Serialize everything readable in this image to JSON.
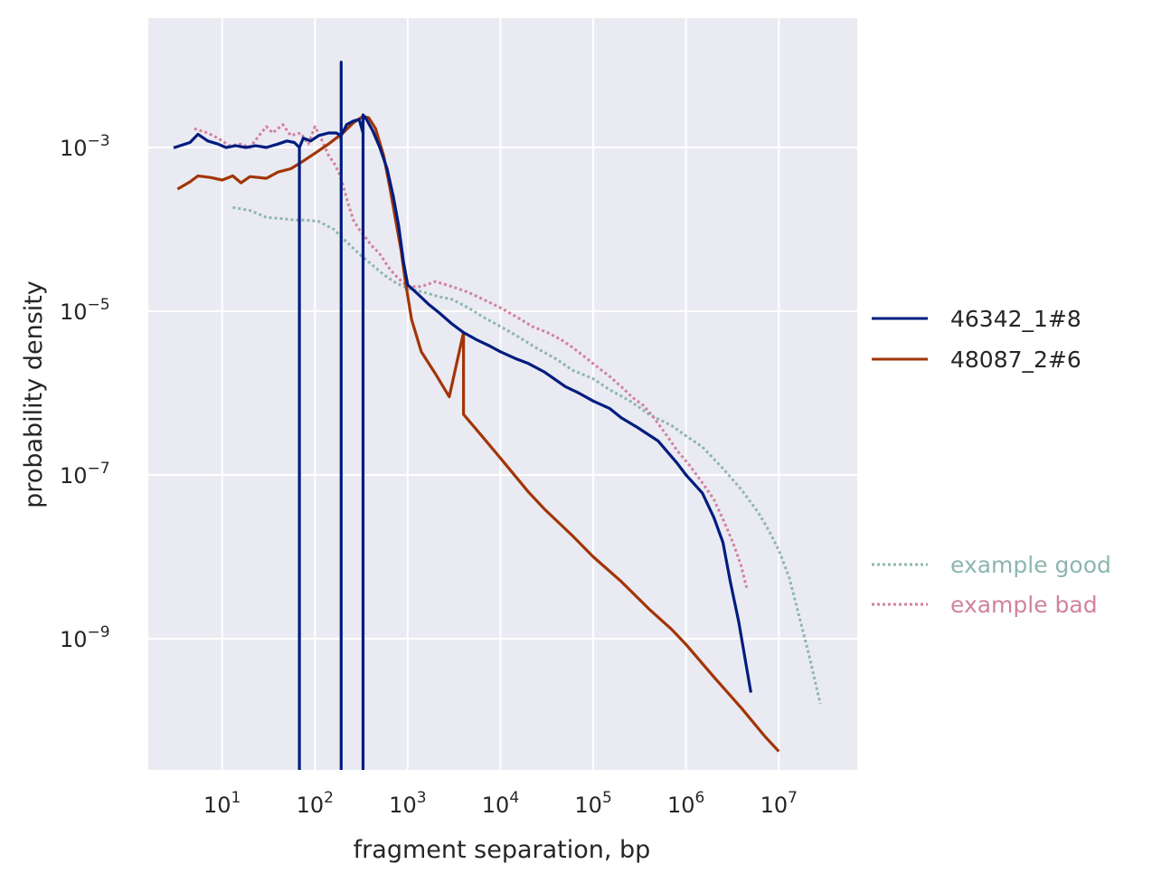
{
  "chart_data": {
    "type": "line",
    "xlabel": "fragment separation, bp",
    "ylabel": "probability density",
    "x_scale": "log",
    "y_scale": "log",
    "xlim": [
      1.6,
      70000000
    ],
    "ylim": [
      2.5e-11,
      0.038
    ],
    "grid": true,
    "x_ticks": [
      {
        "base": "10",
        "exp": "1",
        "value": 10
      },
      {
        "base": "10",
        "exp": "2",
        "value": 100
      },
      {
        "base": "10",
        "exp": "3",
        "value": 1000
      },
      {
        "base": "10",
        "exp": "4",
        "value": 10000
      },
      {
        "base": "10",
        "exp": "5",
        "value": 100000
      },
      {
        "base": "10",
        "exp": "6",
        "value": 1000000
      },
      {
        "base": "10",
        "exp": "7",
        "value": 10000000
      }
    ],
    "y_ticks": [
      {
        "base": "10",
        "exp": "−3",
        "value": 0.001
      },
      {
        "base": "10",
        "exp": "−5",
        "value": 1e-05
      },
      {
        "base": "10",
        "exp": "−7",
        "value": 1e-07
      },
      {
        "base": "10",
        "exp": "−9",
        "value": 1e-09
      }
    ],
    "legend_placement": "right",
    "series": [
      {
        "name": "46342_1#8",
        "color": "#001c7f",
        "style": "solid",
        "points": [
          [
            3.0,
            0.00099
          ],
          [
            4.5,
            0.00115
          ],
          [
            5.5,
            0.00145
          ],
          [
            7,
            0.0012
          ],
          [
            9,
            0.0011
          ],
          [
            11,
            0.001
          ],
          [
            14,
            0.00105
          ],
          [
            18,
            0.001
          ],
          [
            23,
            0.00105
          ],
          [
            30,
            0.001
          ],
          [
            40,
            0.0011
          ],
          [
            50,
            0.0012
          ],
          [
            60,
            0.00115
          ],
          [
            68,
            0.001
          ],
          [
            68,
            2.5e-11
          ],
          [
            68,
            0.001
          ],
          [
            75,
            0.0013
          ],
          [
            90,
            0.0012
          ],
          [
            110,
            0.0014
          ],
          [
            140,
            0.0015
          ],
          [
            170,
            0.0015
          ],
          [
            190,
            0.0014
          ],
          [
            192,
            0.0011
          ],
          [
            192,
            2.5e-11
          ],
          [
            192,
            0.011
          ],
          [
            192,
            0.0014
          ],
          [
            220,
            0.0019
          ],
          [
            260,
            0.0021
          ],
          [
            300,
            0.0022
          ],
          [
            330,
            0.0015
          ],
          [
            330,
            2.5e-11
          ],
          [
            330,
            0.0025
          ],
          [
            360,
            0.0022
          ],
          [
            420,
            0.0016
          ],
          [
            500,
            0.001
          ],
          [
            600,
            0.00055
          ],
          [
            700,
            0.00025
          ],
          [
            800,
            0.00011
          ],
          [
            900,
            4e-05
          ],
          [
            1000,
            2.1e-05
          ],
          [
            1300,
            1.6e-05
          ],
          [
            1700,
            1.2e-05
          ],
          [
            2200,
            9.5e-06
          ],
          [
            3000,
            7e-06
          ],
          [
            4000,
            5.5e-06
          ],
          [
            5500,
            4.5e-06
          ],
          [
            7500,
            3.8e-06
          ],
          [
            10000,
            3.2e-06
          ],
          [
            15000,
            2.6e-06
          ],
          [
            20000,
            2.3e-06
          ],
          [
            30000,
            1.8e-06
          ],
          [
            50000,
            1.2e-06
          ],
          [
            70000,
            1e-06
          ],
          [
            100000,
            8e-07
          ],
          [
            150000,
            6.5e-07
          ],
          [
            200000,
            5e-07
          ],
          [
            300000,
            3.8e-07
          ],
          [
            500000,
            2.6e-07
          ],
          [
            800000,
            1.4e-07
          ],
          [
            1000000,
            1e-07
          ],
          [
            1500000,
            6e-08
          ],
          [
            2000000,
            3e-08
          ],
          [
            2500000,
            1.5e-08
          ],
          [
            3000000,
            5e-09
          ],
          [
            3700000,
            1.6e-09
          ],
          [
            5000000,
            2.2e-10
          ]
        ]
      },
      {
        "name": "48087_2#6",
        "color": "#a23507",
        "style": "solid",
        "points": [
          [
            3.3,
            0.00031
          ],
          [
            4.5,
            0.00038
          ],
          [
            5.5,
            0.00045
          ],
          [
            7.5,
            0.00043
          ],
          [
            10,
            0.0004
          ],
          [
            13,
            0.00045
          ],
          [
            16,
            0.00037
          ],
          [
            20,
            0.00044
          ],
          [
            30,
            0.00042
          ],
          [
            40,
            0.0005
          ],
          [
            55,
            0.00055
          ],
          [
            70,
            0.00065
          ],
          [
            100,
            0.00085
          ],
          [
            140,
            0.0011
          ],
          [
            200,
            0.0015
          ],
          [
            260,
            0.002
          ],
          [
            330,
            0.0024
          ],
          [
            380,
            0.0023
          ],
          [
            450,
            0.0017
          ],
          [
            550,
            0.0008
          ],
          [
            650,
            0.0003
          ],
          [
            750,
            0.00012
          ],
          [
            850,
            5.5e-05
          ],
          [
            950,
            2.2e-05
          ],
          [
            1100,
            8e-06
          ],
          [
            1400,
            3.2e-06
          ],
          [
            2000,
            1.7e-06
          ],
          [
            2800,
            9e-07
          ],
          [
            4000,
            5.5e-06
          ],
          [
            4000,
            5.5e-07
          ],
          [
            6000,
            3.2e-07
          ],
          [
            10000,
            1.6e-07
          ],
          [
            20000,
            6.2e-08
          ],
          [
            30000,
            3.8e-08
          ],
          [
            60000,
            1.8e-08
          ],
          [
            100000,
            1e-08
          ],
          [
            200000,
            5e-09
          ],
          [
            400000,
            2.3e-09
          ],
          [
            700000,
            1.3e-09
          ],
          [
            1000000,
            8.5e-10
          ],
          [
            2000000,
            3.4e-10
          ],
          [
            4000000,
            1.4e-10
          ],
          [
            7000000,
            6.5e-11
          ],
          [
            10000000,
            4.2e-11
          ]
        ]
      },
      {
        "name": "example good",
        "color": "#8db6b0",
        "style": "dotted",
        "points": [
          [
            13,
            0.000185
          ],
          [
            20,
            0.00017
          ],
          [
            30,
            0.00014
          ],
          [
            45,
            0.000135
          ],
          [
            60,
            0.00013
          ],
          [
            80,
            0.00013
          ],
          [
            110,
            0.000125
          ],
          [
            160,
            0.0001
          ],
          [
            220,
            7e-05
          ],
          [
            300,
            5e-05
          ],
          [
            400,
            3.8e-05
          ],
          [
            550,
            2.8e-05
          ],
          [
            750,
            2.2e-05
          ],
          [
            1000,
            1.9e-05
          ],
          [
            1500,
            1.7e-05
          ],
          [
            2200,
            1.5e-05
          ],
          [
            3000,
            1.4e-05
          ],
          [
            4500,
            1.1e-05
          ],
          [
            6500,
            8.5e-06
          ],
          [
            10000,
            6.5e-06
          ],
          [
            15000,
            5e-06
          ],
          [
            25000,
            3.5e-06
          ],
          [
            40000,
            2.6e-06
          ],
          [
            60000,
            1.9e-06
          ],
          [
            100000,
            1.5e-06
          ],
          [
            150000,
            1.1e-06
          ],
          [
            250000,
            8e-07
          ],
          [
            400000,
            5.5e-07
          ],
          [
            700000,
            4e-07
          ],
          [
            1000000,
            3e-07
          ],
          [
            1500000,
            2.2e-07
          ],
          [
            2500000,
            1.2e-07
          ],
          [
            4000000,
            6.5e-08
          ],
          [
            6000000,
            3.5e-08
          ],
          [
            8000000,
            2e-08
          ],
          [
            10000000,
            1.2e-08
          ],
          [
            13000000,
            5.5e-09
          ],
          [
            16000000,
            2.2e-09
          ],
          [
            21000000,
            6.5e-10
          ],
          [
            28000000,
            1.6e-10
          ]
        ]
      },
      {
        "name": "example bad",
        "color": "#d1829e",
        "style": "dotted",
        "points": [
          [
            5,
            0.0017
          ],
          [
            7,
            0.0015
          ],
          [
            9,
            0.0013
          ],
          [
            12,
            0.00105
          ],
          [
            16,
            0.0011
          ],
          [
            20,
            0.001
          ],
          [
            25,
            0.0014
          ],
          [
            30,
            0.0018
          ],
          [
            35,
            0.0015
          ],
          [
            45,
            0.0019
          ],
          [
            55,
            0.0014
          ],
          [
            70,
            0.0015
          ],
          [
            85,
            0.0011
          ],
          [
            100,
            0.0018
          ],
          [
            120,
            0.0012
          ],
          [
            140,
            0.0008
          ],
          [
            160,
            0.00065
          ],
          [
            180,
            0.0005
          ],
          [
            200,
            0.00035
          ],
          [
            230,
            0.0002
          ],
          [
            260,
            0.00013
          ],
          [
            300,
            0.0001
          ],
          [
            350,
            8e-05
          ],
          [
            400,
            6.5e-05
          ],
          [
            500,
            5e-05
          ],
          [
            650,
            3.2e-05
          ],
          [
            800,
            2.5e-05
          ],
          [
            1000,
            2e-05
          ],
          [
            1400,
            2e-05
          ],
          [
            2000,
            2.3e-05
          ],
          [
            3000,
            2e-05
          ],
          [
            4500,
            1.7e-05
          ],
          [
            6500,
            1.4e-05
          ],
          [
            10000,
            1.1e-05
          ],
          [
            15000,
            8.5e-06
          ],
          [
            22000,
            6.5e-06
          ],
          [
            32000,
            5.5e-06
          ],
          [
            45000,
            4.5e-06
          ],
          [
            60000,
            3.6e-06
          ],
          [
            80000,
            2.8e-06
          ],
          [
            110000,
            2.1e-06
          ],
          [
            150000,
            1.6e-06
          ],
          [
            200000,
            1.2e-06
          ],
          [
            260000,
            9e-07
          ],
          [
            350000,
            7e-07
          ],
          [
            450000,
            5e-07
          ],
          [
            600000,
            3.2e-07
          ],
          [
            800000,
            2e-07
          ],
          [
            1100000,
            1.3e-07
          ],
          [
            1500000,
            8e-08
          ],
          [
            2000000,
            5e-08
          ],
          [
            2600000,
            2.6e-08
          ],
          [
            3200000,
            1.5e-08
          ],
          [
            3900000,
            8e-09
          ],
          [
            4500000,
            4.2e-09
          ]
        ]
      }
    ]
  }
}
